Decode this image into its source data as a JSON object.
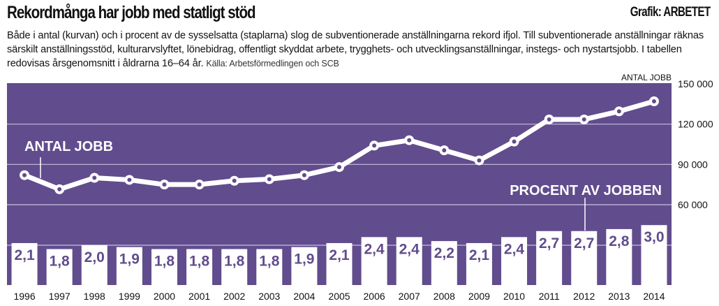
{
  "header": {
    "title": "Rekordmånga har jobb med statligt stöd",
    "credit": "Grafik: ARBETET",
    "description": "Både i antal (kurvan) och i procent av de sysselsatta (staplarna) slog de subventionerade anställningarna rekord ifjol. Till subventionerade anställningar räknas särskilt anställningsstöd, kulturarvslyftet, lönebidrag, offentligt skyddat arbete, trygghets- och utvecklingsanställningar, instegs- och nystartsjobb. I tabellen redovisas årsgenomsnitt i åldrarna 16–64 år.",
    "source": "Källa: Arbetsförmedlingen och SCB"
  },
  "colors": {
    "background": "#614c8d",
    "marks": "#ffffff",
    "gridline": "#c9bfdd",
    "text": "#111111"
  },
  "chart_data": {
    "type": "bar+line",
    "title": "Rekordmånga har jobb med statligt stöd",
    "categories": [
      "1996",
      "1997",
      "1998",
      "1999",
      "2000",
      "2001",
      "2002",
      "2003",
      "2004",
      "2005",
      "2006",
      "2007",
      "2008",
      "2009",
      "2010",
      "2011",
      "2012",
      "2013",
      "2014"
    ],
    "series": [
      {
        "name": "ANTAL JOBB",
        "type": "line",
        "axis": "right",
        "values": [
          82000,
          71500,
          80000,
          78500,
          75000,
          75000,
          77800,
          79000,
          82000,
          88000,
          104000,
          108000,
          100500,
          93000,
          107000,
          123500,
          123500,
          129500,
          137000
        ]
      },
      {
        "name": "PROCENT AV JOBBEN",
        "type": "bar",
        "values": [
          2.1,
          1.8,
          2.0,
          1.9,
          1.8,
          1.8,
          1.8,
          1.8,
          1.9,
          2.1,
          2.4,
          2.4,
          2.2,
          2.1,
          2.4,
          2.7,
          2.7,
          2.8,
          3.0
        ],
        "labels": [
          "2,1",
          "1,8",
          "2,0",
          "1,9",
          "1,8",
          "1,8",
          "1,8",
          "1,8",
          "1,9",
          "2,1",
          "2,4",
          "2,4",
          "2,2",
          "2,1",
          "2,4",
          "2,7",
          "2,7",
          "2,8",
          "3,0"
        ]
      }
    ],
    "y_axis": {
      "label": "ANTAL JOBB",
      "position": "right",
      "ticks": [
        150000,
        120000,
        90000,
        60000
      ],
      "tick_labels": [
        "150 000",
        "120 000",
        "90 000",
        "60 000"
      ],
      "range": [
        0,
        150000
      ]
    },
    "annotations": [
      "ANTAL JOBB",
      "PROCENT AV JOBBEN"
    ],
    "grid": true
  }
}
